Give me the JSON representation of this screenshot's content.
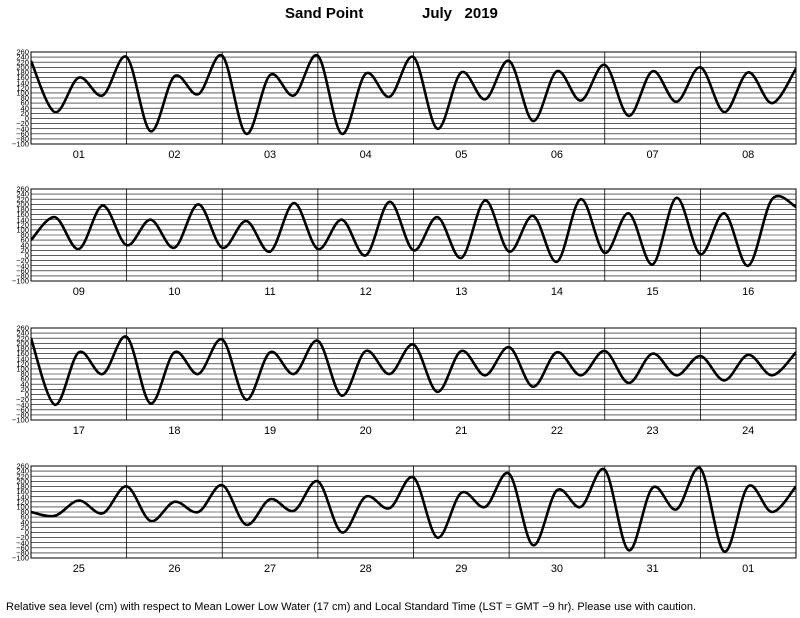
{
  "header": {
    "station": "Sand Point",
    "period": "July   2019"
  },
  "caption": "Relative sea level (cm) with respect to Mean Lower Low Water (17 cm) and Local Standard Time (LST = GMT −9 hr). Please use with caution.",
  "chart_data": {
    "type": "line",
    "title": "Sand Point July 2019",
    "xlabel": "",
    "ylabel": "",
    "units": "cm",
    "ylim": [
      -100,
      260
    ],
    "ytick_labels": [
      "260",
      "240",
      "220",
      "200",
      "180",
      "160",
      "140",
      "120",
      "100",
      "80",
      "60",
      "40",
      "20",
      "0",
      "−20",
      "−40",
      "−60",
      "−80",
      "−100"
    ],
    "line_color": "#000000",
    "grid": true,
    "panels": [
      {
        "days": [
          "01",
          "02",
          "03",
          "04",
          "05",
          "06",
          "07",
          "08"
        ]
      },
      {
        "days": [
          "09",
          "10",
          "11",
          "12",
          "13",
          "14",
          "15",
          "16"
        ]
      },
      {
        "days": [
          "17",
          "18",
          "19",
          "20",
          "21",
          "22",
          "23",
          "24"
        ]
      },
      {
        "days": [
          "25",
          "26",
          "27",
          "28",
          "29",
          "30",
          "31",
          "01"
        ]
      }
    ],
    "x_hours": [
      0,
      6,
      12,
      18,
      24,
      30,
      36,
      42,
      48,
      54,
      60,
      66,
      72,
      78,
      84,
      90,
      96,
      102,
      108,
      114,
      120,
      126,
      132,
      138,
      144,
      150,
      156,
      162,
      168,
      174,
      180,
      186,
      192
    ],
    "series": [
      {
        "values": [
          225,
          25,
          160,
          90,
          240,
          -50,
          165,
          95,
          245,
          -60,
          170,
          90,
          245,
          -60,
          175,
          85,
          240,
          -40,
          180,
          75,
          225,
          -10,
          185,
          70,
          210,
          10,
          185,
          65,
          200,
          25,
          180,
          60,
          195
        ]
      },
      {
        "values": [
          60,
          150,
          25,
          195,
          40,
          140,
          30,
          200,
          30,
          135,
          15,
          205,
          25,
          140,
          0,
          210,
          20,
          150,
          -10,
          215,
          15,
          155,
          -25,
          220,
          10,
          165,
          -35,
          225,
          5,
          165,
          -40,
          220,
          190
        ]
      },
      {
        "values": [
          220,
          -40,
          165,
          80,
          225,
          -35,
          165,
          80,
          215,
          -20,
          165,
          80,
          210,
          -5,
          170,
          80,
          195,
          10,
          170,
          75,
          185,
          30,
          165,
          75,
          170,
          45,
          160,
          75,
          150,
          55,
          155,
          75,
          165
        ]
      },
      {
        "values": [
          80,
          65,
          125,
          75,
          180,
          45,
          120,
          80,
          185,
          30,
          130,
          85,
          200,
          0,
          140,
          95,
          215,
          -20,
          155,
          100,
          230,
          -50,
          165,
          100,
          245,
          -70,
          175,
          90,
          250,
          -75,
          180,
          80,
          180
        ]
      }
    ]
  }
}
